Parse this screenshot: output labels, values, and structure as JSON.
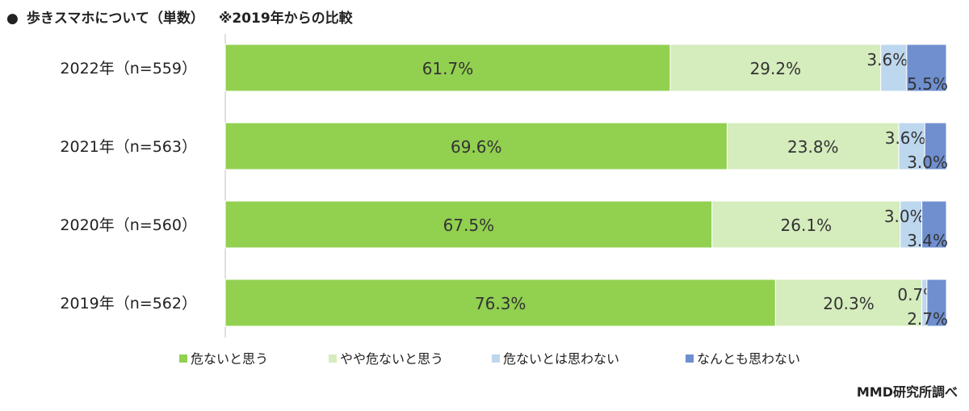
{
  "title": {
    "bullet": "●",
    "main": "歩きスマホについて（単数）",
    "note": "※2019年からの比較"
  },
  "credit": "MMD研究所調べ",
  "chart_data": {
    "type": "bar",
    "orientation": "horizontal",
    "stacked": true,
    "percent": true,
    "categories": [
      "2022年（n=559）",
      "2021年（n=563）",
      "2020年（n=560）",
      "2019年（n=562）"
    ],
    "series": [
      {
        "name": "危ないと思う",
        "values": [
          61.7,
          69.6,
          67.5,
          76.3
        ],
        "labels": [
          "61.7%",
          "69.6%",
          "67.5%",
          "76.3%"
        ],
        "color": "#92d050"
      },
      {
        "name": "やや危ないと思う",
        "values": [
          29.2,
          23.8,
          26.1,
          20.3
        ],
        "labels": [
          "29.2%",
          "23.8%",
          "26.1%",
          "20.3%"
        ],
        "color": "#d5ecbd"
      },
      {
        "name": "危ないとは思わない",
        "values": [
          3.6,
          3.6,
          3.0,
          0.7
        ],
        "labels": [
          "3.6%",
          "3.6%",
          "3.0%",
          "0.7%"
        ],
        "color": "#bdd7ee"
      },
      {
        "name": "なんとも思わない",
        "values": [
          5.5,
          3.0,
          3.4,
          2.7
        ],
        "labels": [
          "5.5%",
          "3.0%",
          "3.4%",
          "2.7%"
        ],
        "color": "#6f8fcf"
      }
    ],
    "xlim": [
      0,
      100
    ],
    "legend_position": "bottom",
    "grid": false
  }
}
